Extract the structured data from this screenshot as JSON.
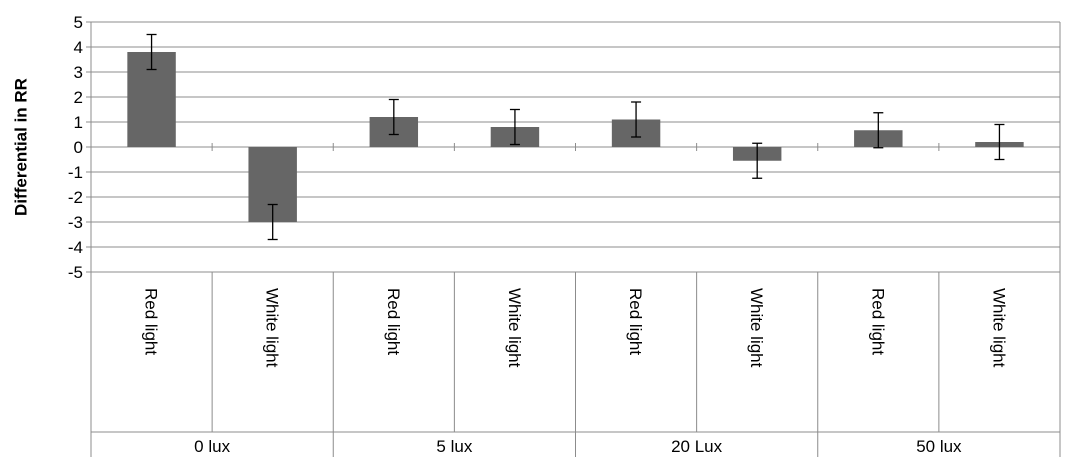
{
  "chart_data": {
    "type": "bar",
    "ylabel": "Differential in RR",
    "ylim": [
      -5,
      5
    ],
    "yticks": [
      5,
      4,
      3,
      2,
      1,
      0,
      -1,
      -2,
      -3,
      -4,
      -5
    ],
    "grid": true,
    "legend": "none",
    "bar_color": "#666666",
    "groups": [
      {
        "label": "0 lux",
        "categories": [
          "Red light",
          "White light"
        ]
      },
      {
        "label": "5 lux",
        "categories": [
          "Red light",
          "White light"
        ]
      },
      {
        "label": "20 Lux",
        "categories": [
          "Red light",
          "White light"
        ]
      },
      {
        "label": "50 lux",
        "categories": [
          "Red light",
          "White light"
        ]
      }
    ],
    "values": [
      3.8,
      -3.0,
      1.2,
      0.8,
      1.1,
      -0.55,
      0.67,
      0.2
    ],
    "error_plus_minus": [
      0.7,
      0.7,
      0.7,
      0.7,
      0.7,
      0.7,
      0.7,
      0.7
    ]
  }
}
